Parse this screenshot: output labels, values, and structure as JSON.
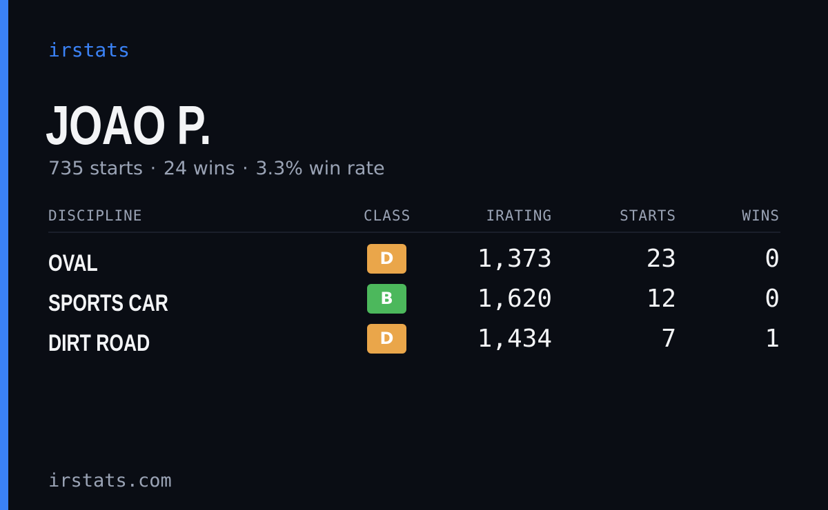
{
  "brand": "irstats",
  "driver": {
    "name": "JOAO P.",
    "starts_text": "735 starts",
    "wins_text": "24 wins",
    "win_rate_text": "3.3% win rate",
    "separator": "·"
  },
  "table": {
    "headers": {
      "discipline": "DISCIPLINE",
      "class": "CLASS",
      "irating": "IRATING",
      "starts": "STARTS",
      "wins": "WINS"
    },
    "rows": [
      {
        "discipline": "OVAL",
        "class": "D",
        "class_color": "#eaa64a",
        "irating": "1,373",
        "starts": "23",
        "wins": "0"
      },
      {
        "discipline": "SPORTS CAR",
        "class": "B",
        "class_color": "#4cb85c",
        "irating": "1,620",
        "starts": "12",
        "wins": "0"
      },
      {
        "discipline": "DIRT ROAD",
        "class": "D",
        "class_color": "#eaa64a",
        "irating": "1,434",
        "starts": "7",
        "wins": "1"
      }
    ]
  },
  "footer": "irstats.com",
  "colors": {
    "accent": "#3b82f6",
    "background": "#0a0d14",
    "muted_text": "#9aa3b5",
    "primary_text": "#f3f4f6"
  }
}
